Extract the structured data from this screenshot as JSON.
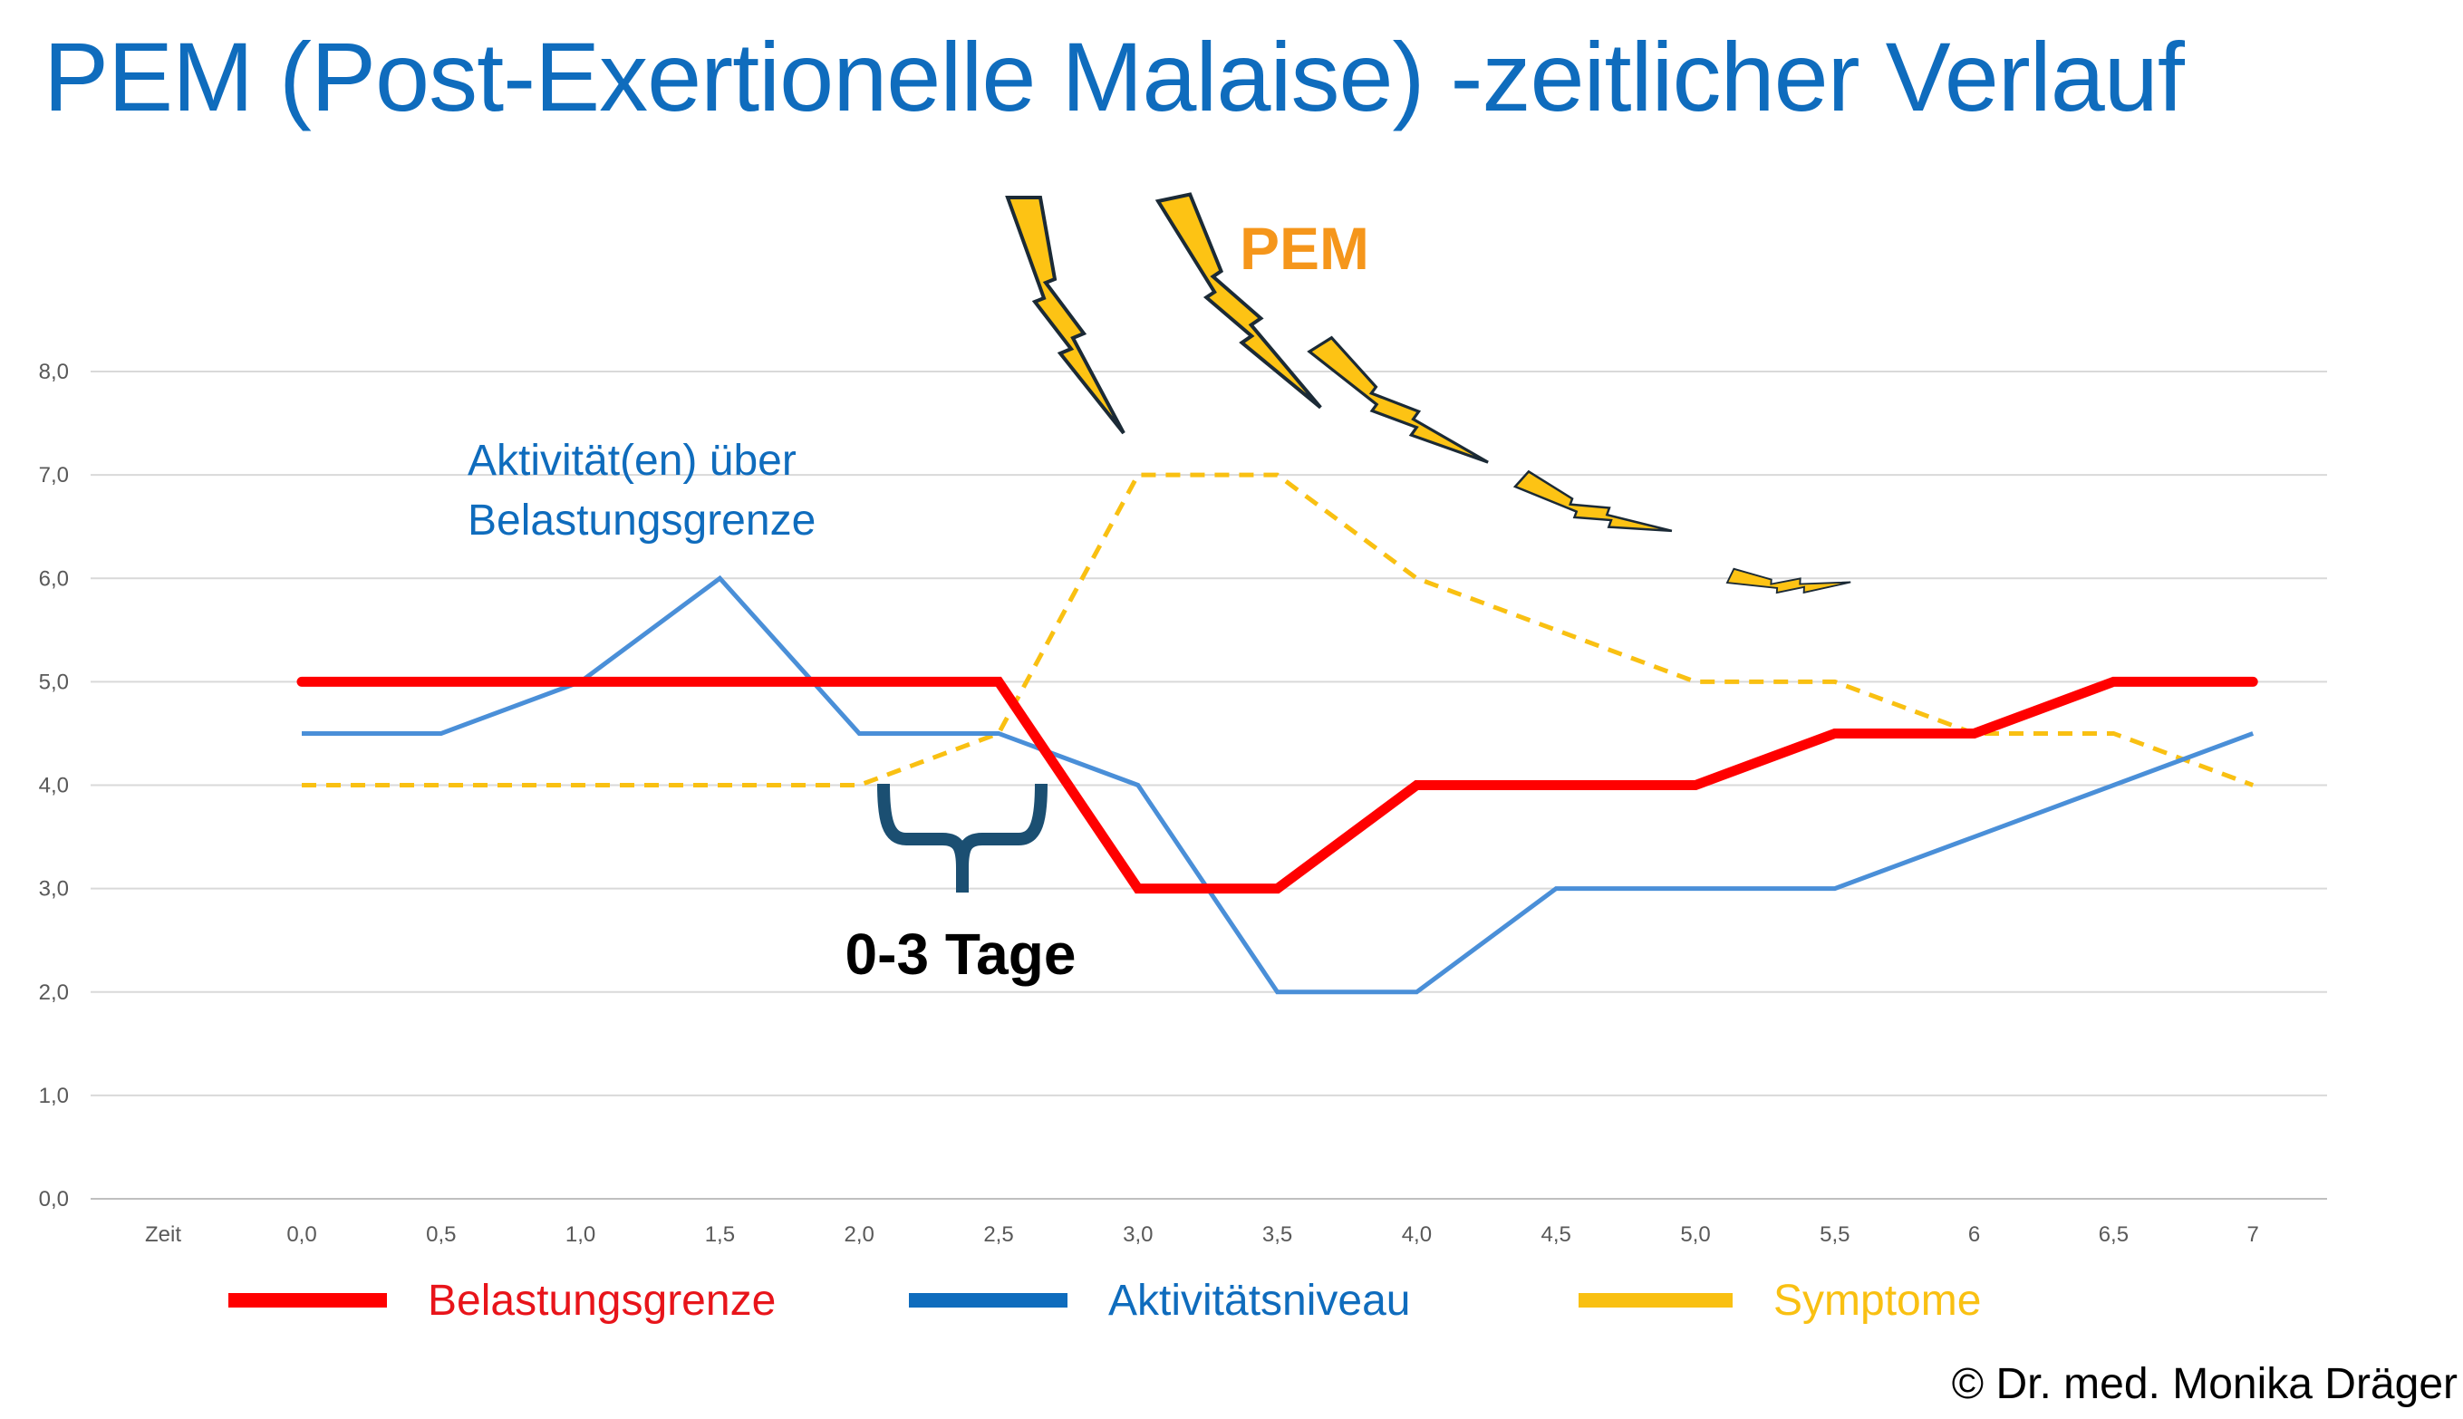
{
  "title": "PEM (Post-Exertionelle Malaise) -zeitlicher Verlauf",
  "copyright": "© Dr. med. Monika Dräger",
  "chart_data": {
    "type": "line",
    "title": "PEM (Post-Exertionelle Malaise) -zeitlicher Verlauf",
    "x_axis_title": "Zeit",
    "categories": [
      "0,0",
      "0,5",
      "1,0",
      "1,5",
      "2,0",
      "2,5",
      "3,0",
      "3,5",
      "4,0",
      "4,5",
      "5,0",
      "5,5",
      "6",
      "6,5",
      "7"
    ],
    "y_ticks": [
      "0,0",
      "1,0",
      "2,0",
      "3,0",
      "4,0",
      "5,0",
      "6,0",
      "7,0",
      "8,0"
    ],
    "ylim": [
      0,
      8
    ],
    "grid": true,
    "legend_position": "bottom",
    "series": [
      {
        "name": "Belastungsgrenze",
        "color": "#FF0000",
        "style": "solid-thick",
        "values": [
          5,
          5,
          5,
          5,
          5,
          5,
          3,
          3,
          4,
          4,
          4,
          4.5,
          4.5,
          5,
          5
        ]
      },
      {
        "name": "Aktivitätsniveau",
        "color": "#4A8FD8",
        "style": "solid",
        "values": [
          4.5,
          4.5,
          5,
          6,
          4.5,
          4.5,
          4,
          2,
          2,
          3,
          3,
          3,
          3.5,
          4,
          4.5
        ]
      },
      {
        "name": "Symptome",
        "color": "#F9C012",
        "style": "dashed",
        "values": [
          4,
          4,
          4,
          4,
          4,
          4.5,
          7,
          7,
          6,
          5.5,
          5,
          5,
          4.5,
          4.5,
          4
        ]
      }
    ],
    "annotations": {
      "activity_label_line1": "Aktivität(en) über",
      "activity_label_line2": "Belastungsgrenze",
      "pem_label": "PEM",
      "delay_label": "0-3 Tage"
    },
    "legend": [
      {
        "name": "Belastungsgrenze",
        "color": "#FF0000"
      },
      {
        "name": "Aktivitätsniveau",
        "color": "#0F6CBD"
      },
      {
        "name": "Symptome",
        "color": "#F9C012"
      }
    ],
    "legend_text_colors": [
      "#E8141A",
      "#0F6CBD",
      "#F9C012"
    ]
  }
}
